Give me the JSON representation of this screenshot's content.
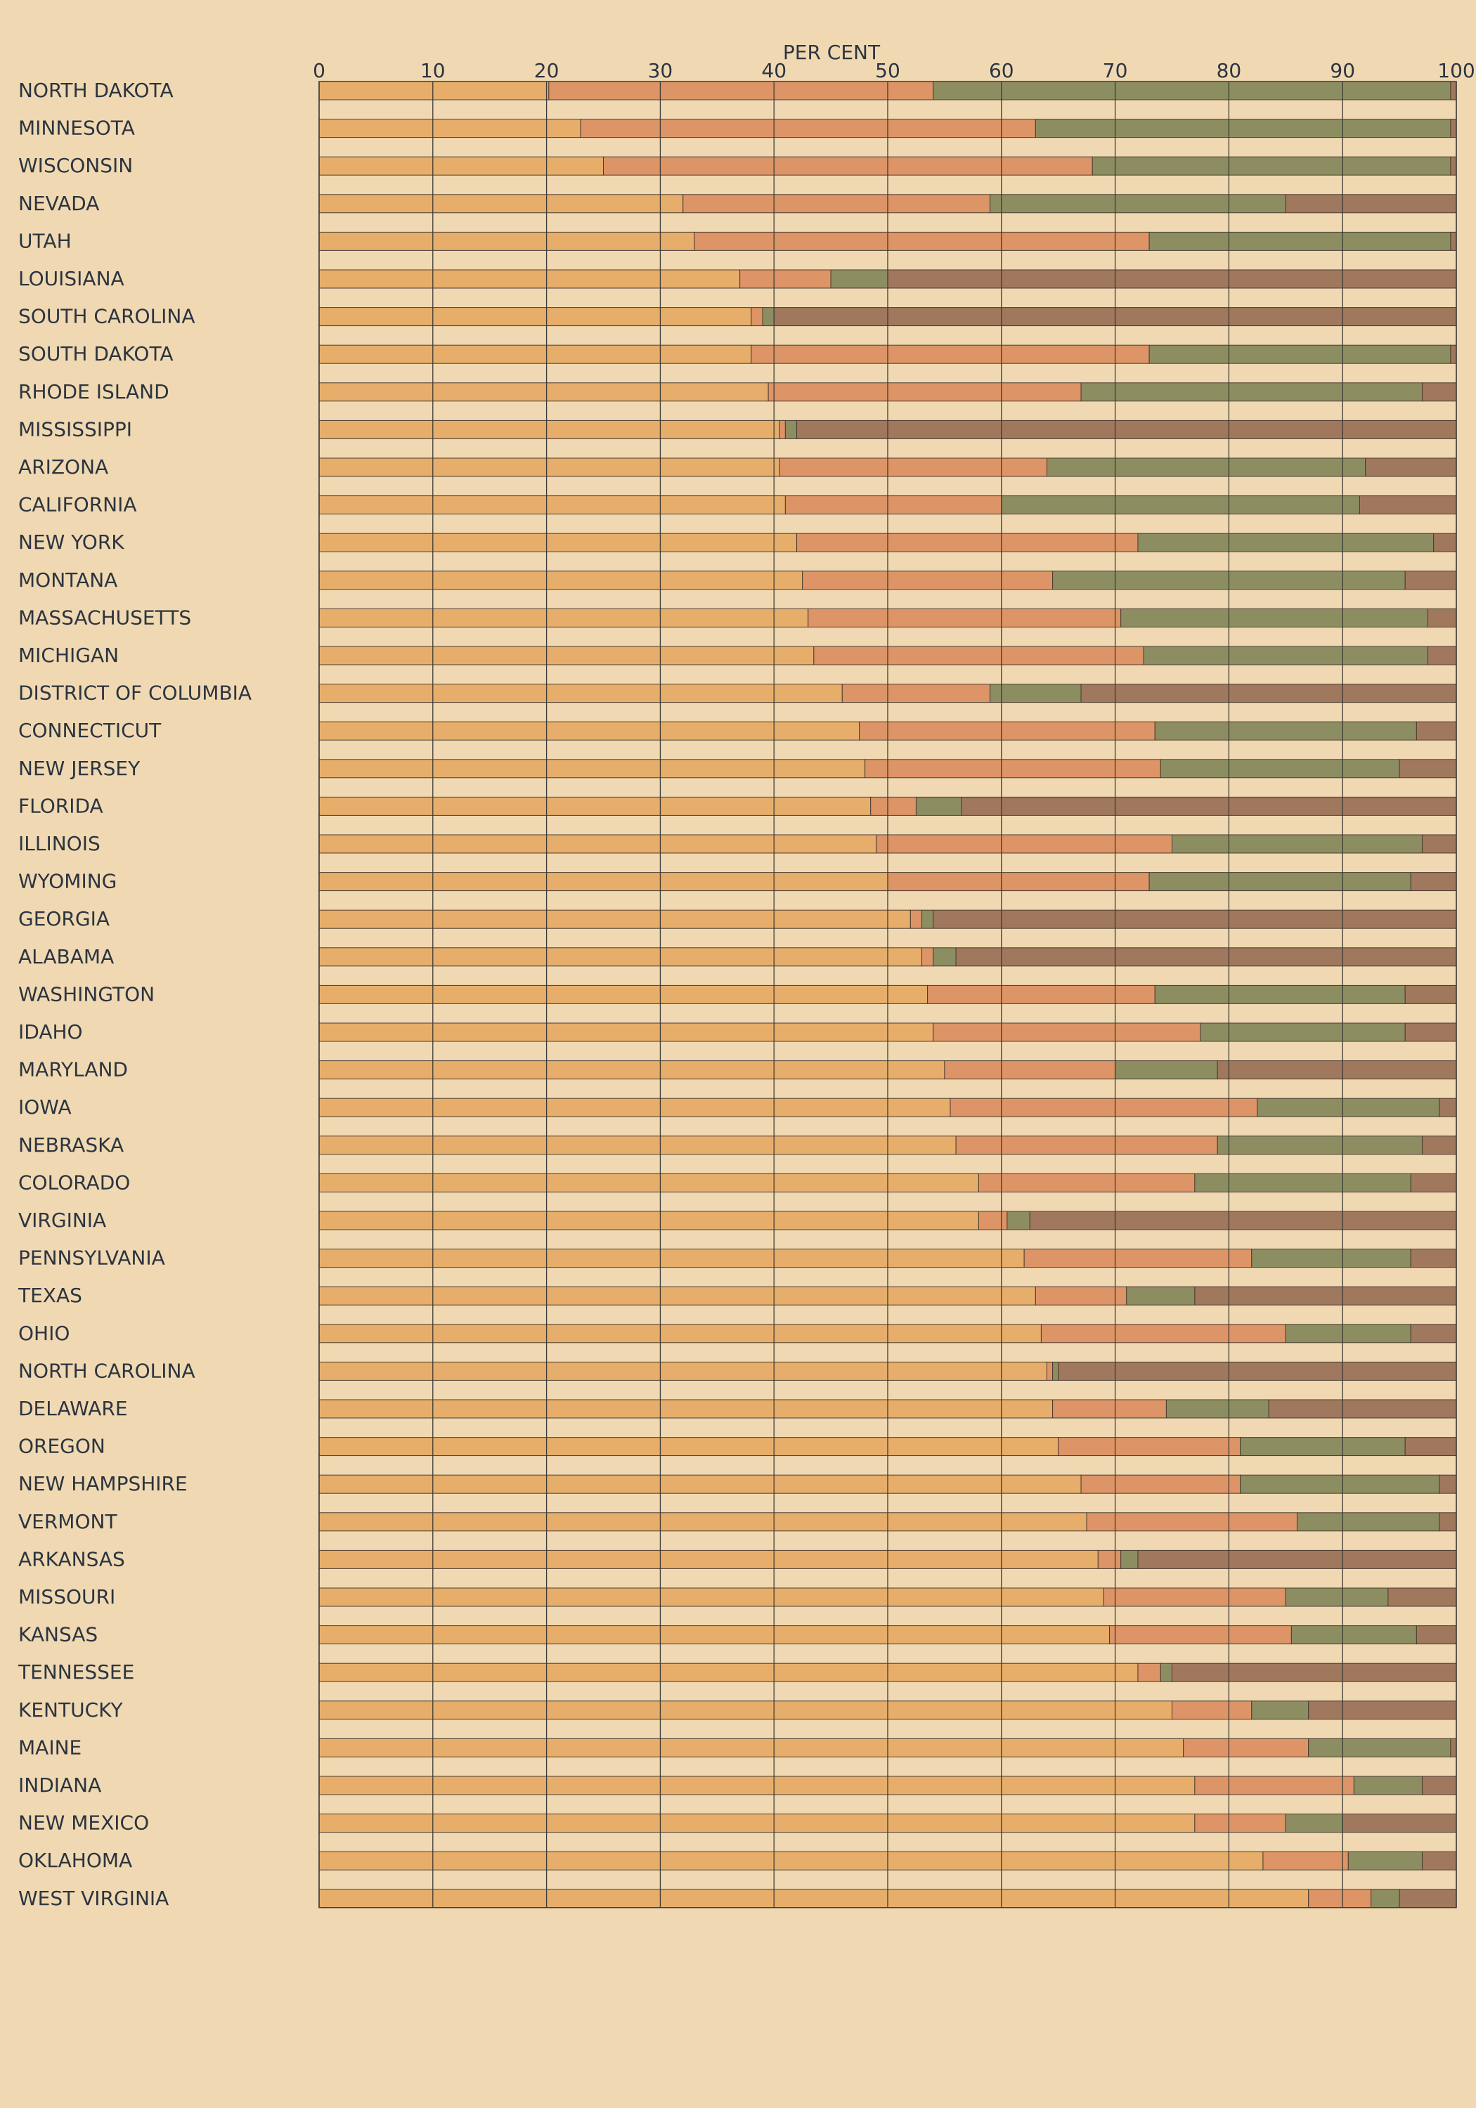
{
  "chart_data": {
    "type": "bar",
    "orientation": "horizontal",
    "stacked": true,
    "title": "",
    "xlabel": "PER CENT",
    "xlim": [
      0,
      100
    ],
    "xticks": [
      "0",
      "10",
      "20",
      "30",
      "40",
      "50",
      "60",
      "70",
      "80",
      "90",
      "100"
    ],
    "grid": true,
    "legend": "none",
    "series_colors": [
      "#e6ae6a",
      "#dd9466",
      "#8c8e62",
      "#a0785e"
    ],
    "categories": [
      "NORTH DAKOTA",
      "MINNESOTA",
      "WISCONSIN",
      "NEVADA",
      "UTAH",
      "LOUISIANA",
      "SOUTH CAROLINA",
      "SOUTH DAKOTA",
      "RHODE ISLAND",
      "MISSISSIPPI",
      "ARIZONA",
      "CALIFORNIA",
      "NEW YORK",
      "MONTANA",
      "MASSACHUSETTS",
      "MICHIGAN",
      "DISTRICT OF COLUMBIA",
      "CONNECTICUT",
      "NEW JERSEY",
      "FLORIDA",
      "ILLINOIS",
      "WYOMING",
      "GEORGIA",
      "ALABAMA",
      "WASHINGTON",
      "IDAHO",
      "MARYLAND",
      "IOWA",
      "NEBRASKA",
      "COLORADO",
      "VIRGINIA",
      "PENNSYLVANIA",
      "TEXAS",
      "OHIO",
      "NORTH CAROLINA",
      "DELAWARE",
      "OREGON",
      "NEW HAMPSHIRE",
      "VERMONT",
      "ARKANSAS",
      "MISSOURI",
      "KANSAS",
      "TENNESSEE",
      "KENTUCKY",
      "MAINE",
      "INDIANA",
      "NEW MEXICO",
      "OKLAHOMA",
      "WEST VIRGINIA"
    ],
    "boundaries": [
      [
        20.2,
        54,
        99.5
      ],
      [
        23,
        63,
        99.5
      ],
      [
        25,
        68,
        99.5
      ],
      [
        32,
        59,
        85
      ],
      [
        33,
        73,
        99.5
      ],
      [
        37,
        45,
        50
      ],
      [
        38,
        39,
        40
      ],
      [
        38,
        73,
        99.5
      ],
      [
        39.5,
        67,
        97
      ],
      [
        40.5,
        41,
        42
      ],
      [
        40.5,
        64,
        92
      ],
      [
        41,
        60,
        91.5
      ],
      [
        42,
        72,
        98
      ],
      [
        42.5,
        64.5,
        95.5
      ],
      [
        43,
        70.5,
        97.5
      ],
      [
        43.5,
        72.5,
        97.5
      ],
      [
        46,
        59,
        67
      ],
      [
        47.5,
        73.5,
        96.5
      ],
      [
        48,
        74,
        95
      ],
      [
        48.5,
        52.5,
        56.5
      ],
      [
        49,
        75,
        97
      ],
      [
        50,
        73,
        96
      ],
      [
        52,
        53,
        54
      ],
      [
        53,
        54,
        56
      ],
      [
        53.5,
        73.5,
        95.5
      ],
      [
        54,
        77.5,
        95.5
      ],
      [
        55,
        70,
        79
      ],
      [
        55.5,
        82.5,
        98.5
      ],
      [
        56,
        79,
        97
      ],
      [
        58,
        77,
        96
      ],
      [
        58,
        60.5,
        62.5
      ],
      [
        62,
        82,
        96
      ],
      [
        63,
        71,
        77
      ],
      [
        63.5,
        85,
        96
      ],
      [
        64,
        64.5,
        65
      ],
      [
        64.5,
        74.5,
        83.5
      ],
      [
        65,
        81,
        95.5
      ],
      [
        67,
        81,
        98.5
      ],
      [
        67.5,
        86,
        98.5
      ],
      [
        68.5,
        70.5,
        72
      ],
      [
        69,
        85,
        94
      ],
      [
        69.5,
        85.5,
        96.5
      ],
      [
        72,
        74,
        75
      ],
      [
        75,
        82,
        87
      ],
      [
        76,
        87,
        99.5
      ],
      [
        77,
        91,
        97
      ],
      [
        77,
        85,
        90
      ],
      [
        83,
        90.5,
        97
      ],
      [
        87,
        92.5,
        95
      ]
    ]
  }
}
